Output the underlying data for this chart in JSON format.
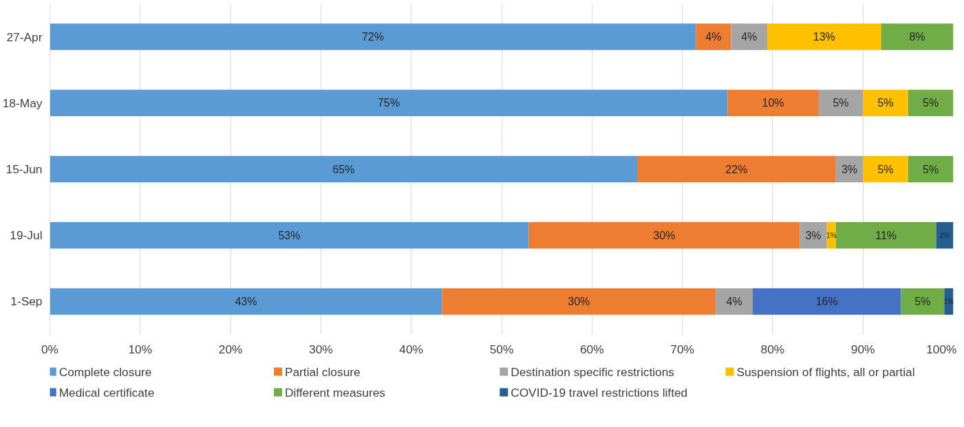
{
  "chart_data": {
    "type": "bar",
    "orientation": "horizontal",
    "stacked": true,
    "categories": [
      "27-Apr",
      "18-May",
      "15-Jun",
      "19-Jul",
      "1-Sep"
    ],
    "series": [
      {
        "name": "Complete closure",
        "color": "#5b9bd5",
        "values": [
          71.5,
          75.0,
          65.0,
          53.0,
          43.4
        ],
        "value_labels": [
          "72%",
          "75%",
          "65%",
          "53%",
          "43%"
        ]
      },
      {
        "name": "Partial closure",
        "color": "#ed7d31",
        "values": [
          3.9,
          10.1,
          22.0,
          30.0,
          30.3
        ],
        "value_labels": [
          "4%",
          "10%",
          "22%",
          "30%",
          "30%"
        ]
      },
      {
        "name": "Destination specific restrictions",
        "color": "#a5a5a5",
        "values": [
          4.0,
          4.9,
          3.0,
          3.0,
          4.1
        ],
        "value_labels": [
          "4%",
          "5%",
          "3%",
          "3%",
          "4%"
        ]
      },
      {
        "name": "Suspension of flights, all or partial",
        "color": "#ffc000",
        "values": [
          12.6,
          5.0,
          5.0,
          1.0,
          null
        ],
        "value_labels": [
          "13%",
          "5%",
          "5%",
          "1%",
          null
        ]
      },
      {
        "name": "Medical certificate",
        "color": "#4472c4",
        "values": [
          null,
          null,
          null,
          null,
          16.4
        ],
        "value_labels": [
          null,
          null,
          null,
          null,
          "16%"
        ]
      },
      {
        "name": "Different measures",
        "color": "#70ad47",
        "values": [
          8.0,
          5.0,
          5.0,
          11.1,
          4.8
        ],
        "value_labels": [
          "8%",
          "5%",
          "5%",
          "11%",
          "5%"
        ]
      },
      {
        "name": "COVID-19 travel restrictions lifted",
        "color": "#255e91",
        "values": [
          null,
          null,
          null,
          1.9,
          1.0
        ],
        "value_labels": [
          null,
          null,
          null,
          "2%",
          "1%"
        ]
      }
    ],
    "xlim": [
      0,
      100
    ],
    "xticks": [
      {
        "value": 0,
        "label": "0%"
      },
      {
        "value": 10,
        "label": "10%"
      },
      {
        "value": 20,
        "label": "20%"
      },
      {
        "value": 30,
        "label": "30%"
      },
      {
        "value": 40,
        "label": "40%"
      },
      {
        "value": 50,
        "label": "50%"
      },
      {
        "value": 60,
        "label": "60%"
      },
      {
        "value": 70,
        "label": "70%"
      },
      {
        "value": 80,
        "label": "80%"
      },
      {
        "value": 90,
        "label": "90%"
      },
      {
        "value": 100,
        "label": "100%"
      }
    ],
    "grid": "x",
    "legend": "bottom"
  }
}
